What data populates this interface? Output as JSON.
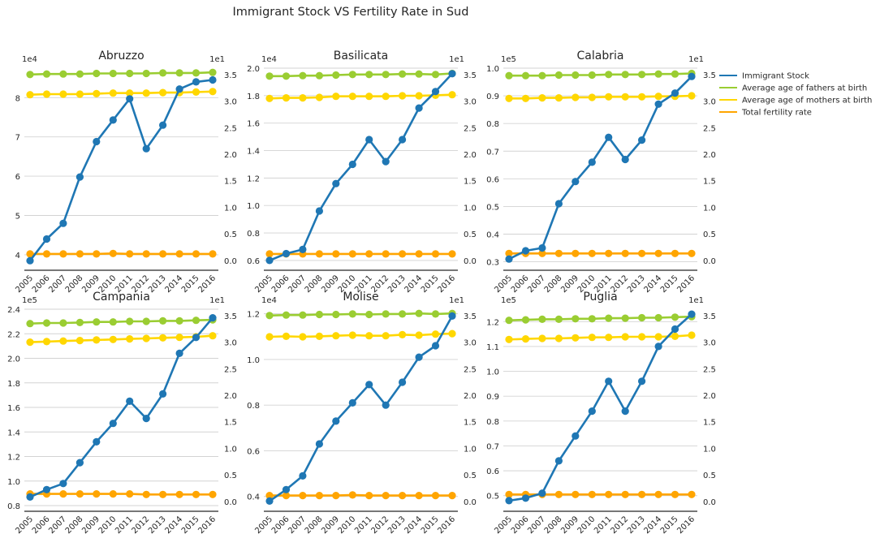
{
  "title": "Immigrant Stock VS Fertility Rate in Sud",
  "colors": {
    "immigrant_stock": "#1f77b4",
    "father_age": "#9acd32",
    "mother_age": "#ffd700",
    "fertility": "#ffa500",
    "grid": "#d3d3d3",
    "axis": "#262626"
  },
  "legend": {
    "placement": "right, outside",
    "entries": [
      {
        "label": "Immigrant Stock",
        "color_key": "immigrant_stock"
      },
      {
        "label": "Average age of fathers at birth",
        "color_key": "father_age"
      },
      {
        "label": "Average age of mothers at birth",
        "color_key": "mother_age"
      },
      {
        "label": "Total fertility rate",
        "color_key": "fertility"
      }
    ]
  },
  "chart_data": [
    {
      "type": "line",
      "title": "Abruzzo",
      "x": [
        "2005",
        "2006",
        "2007",
        "2008",
        "2009",
        "2010",
        "2011",
        "2012",
        "2013",
        "2014",
        "2015",
        "2016"
      ],
      "left_axis": {
        "multiplier_label": "1e4",
        "ticks": [
          "4",
          "5",
          "6",
          "7",
          "8"
        ],
        "tick_values": [
          4,
          5,
          6,
          7,
          8
        ],
        "ylim": [
          3.75,
          8.75
        ]
      },
      "right_axis": {
        "multiplier_label": "1e1",
        "ticks": [
          "0.0",
          "0.5",
          "1.0",
          "1.5",
          "2.0",
          "2.5",
          "3.0",
          "3.5"
        ],
        "tick_values": [
          0,
          0.5,
          1,
          1.5,
          2,
          2.5,
          3,
          3.5
        ],
        "ylim": [
          -0.08,
          3.62
        ]
      },
      "grid": true,
      "series": [
        {
          "name": "Immigrant Stock",
          "axis": "left",
          "color_key": "immigrant_stock",
          "values": [
            3.85,
            4.4,
            4.8,
            5.98,
            6.88,
            7.43,
            7.97,
            6.7,
            7.3,
            8.22,
            8.4,
            8.45
          ]
        },
        {
          "name": "Average age of fathers at birth",
          "axis": "right",
          "color_key": "father_age",
          "values": [
            3.5,
            3.51,
            3.51,
            3.51,
            3.52,
            3.52,
            3.52,
            3.52,
            3.53,
            3.53,
            3.53,
            3.54
          ]
        },
        {
          "name": "Average age of mothers at birth",
          "axis": "right",
          "color_key": "mother_age",
          "values": [
            3.12,
            3.13,
            3.13,
            3.13,
            3.14,
            3.15,
            3.15,
            3.15,
            3.16,
            3.16,
            3.17,
            3.18
          ]
        },
        {
          "name": "Total fertility rate",
          "axis": "right",
          "color_key": "fertility",
          "values": [
            0.12,
            0.12,
            0.12,
            0.12,
            0.12,
            0.13,
            0.12,
            0.12,
            0.12,
            0.12,
            0.12,
            0.12
          ]
        }
      ]
    },
    {
      "type": "line",
      "title": "Basilicata",
      "x": [
        "2005",
        "2006",
        "2007",
        "2008",
        "2009",
        "2010",
        "2011",
        "2012",
        "2013",
        "2014",
        "2015",
        "2016"
      ],
      "left_axis": {
        "multiplier_label": "1e4",
        "ticks": [
          "0.6",
          "0.8",
          "1.0",
          "1.2",
          "1.4",
          "1.6",
          "1.8",
          "2.0"
        ],
        "tick_values": [
          0.6,
          0.8,
          1.0,
          1.2,
          1.4,
          1.6,
          1.8,
          2.0
        ],
        "ylim": [
          0.57,
          2.0
        ]
      },
      "right_axis": {
        "multiplier_label": "1e1",
        "ticks": [
          "0.0",
          "0.5",
          "1.0",
          "1.5",
          "2.0",
          "2.5",
          "3.0",
          "3.5"
        ],
        "tick_values": [
          0,
          0.5,
          1,
          1.5,
          2,
          2.5,
          3,
          3.5
        ],
        "ylim": [
          -0.08,
          3.62
        ]
      },
      "grid": true,
      "series": [
        {
          "name": "Immigrant Stock",
          "axis": "left",
          "color_key": "immigrant_stock",
          "values": [
            0.6,
            0.65,
            0.68,
            0.96,
            1.16,
            1.3,
            1.48,
            1.32,
            1.48,
            1.71,
            1.83,
            1.96
          ]
        },
        {
          "name": "Average age of fathers at birth",
          "axis": "right",
          "color_key": "father_age",
          "values": [
            3.47,
            3.47,
            3.48,
            3.48,
            3.49,
            3.5,
            3.5,
            3.5,
            3.51,
            3.51,
            3.5,
            3.52
          ]
        },
        {
          "name": "Average age of mothers at birth",
          "axis": "right",
          "color_key": "mother_age",
          "values": [
            3.05,
            3.06,
            3.06,
            3.07,
            3.09,
            3.09,
            3.09,
            3.09,
            3.1,
            3.1,
            3.11,
            3.12
          ]
        },
        {
          "name": "Total fertility rate",
          "axis": "right",
          "color_key": "fertility",
          "values": [
            0.12,
            0.12,
            0.12,
            0.12,
            0.12,
            0.12,
            0.12,
            0.12,
            0.12,
            0.12,
            0.12,
            0.12
          ]
        }
      ]
    },
    {
      "type": "line",
      "title": "Calabria",
      "x": [
        "2005",
        "2006",
        "2007",
        "2008",
        "2009",
        "2010",
        "2011",
        "2012",
        "2013",
        "2014",
        "2015",
        "2016"
      ],
      "left_axis": {
        "multiplier_label": "1e5",
        "ticks": [
          "0.3",
          "0.4",
          "0.5",
          "0.6",
          "0.7",
          "0.8",
          "0.9",
          "1.0"
        ],
        "tick_values": [
          0.3,
          0.4,
          0.5,
          0.6,
          0.7,
          0.8,
          0.9,
          1.0
        ],
        "ylim": [
          0.29,
          1.0
        ]
      },
      "right_axis": {
        "multiplier_label": "1e1",
        "ticks": [
          "0.0",
          "0.5",
          "1.0",
          "1.5",
          "2.0",
          "2.5",
          "3.0",
          "3.5"
        ],
        "tick_values": [
          0,
          0.5,
          1,
          1.5,
          2,
          2.5,
          3,
          3.5
        ],
        "ylim": [
          -0.08,
          3.62
        ]
      },
      "grid": true,
      "series": [
        {
          "name": "Immigrant Stock",
          "axis": "left",
          "color_key": "immigrant_stock",
          "values": [
            0.31,
            0.34,
            0.35,
            0.51,
            0.59,
            0.66,
            0.75,
            0.67,
            0.74,
            0.87,
            0.91,
            0.97
          ]
        },
        {
          "name": "Average age of fathers at birth",
          "axis": "right",
          "color_key": "father_age",
          "values": [
            3.48,
            3.48,
            3.48,
            3.49,
            3.49,
            3.49,
            3.5,
            3.5,
            3.5,
            3.51,
            3.51,
            3.52
          ]
        },
        {
          "name": "Average age of mothers at birth",
          "axis": "right",
          "color_key": "mother_age",
          "values": [
            3.05,
            3.05,
            3.06,
            3.06,
            3.07,
            3.07,
            3.08,
            3.08,
            3.08,
            3.09,
            3.09,
            3.1
          ]
        },
        {
          "name": "Total fertility rate",
          "axis": "right",
          "color_key": "fertility",
          "values": [
            0.13,
            0.13,
            0.13,
            0.13,
            0.13,
            0.13,
            0.13,
            0.13,
            0.13,
            0.13,
            0.13,
            0.13
          ]
        }
      ]
    },
    {
      "type": "line",
      "title": "Campania",
      "x": [
        "2005",
        "2006",
        "2007",
        "2008",
        "2009",
        "2010",
        "2011",
        "2012",
        "2013",
        "2014",
        "2015",
        "2016"
      ],
      "left_axis": {
        "multiplier_label": "1e5",
        "ticks": [
          "0.8",
          "1.0",
          "1.2",
          "1.4",
          "1.6",
          "1.8",
          "2.0",
          "2.2",
          "2.4"
        ],
        "tick_values": [
          0.8,
          1.0,
          1.2,
          1.4,
          1.6,
          1.8,
          2.0,
          2.2,
          2.4
        ],
        "ylim": [
          0.8,
          2.4
        ]
      },
      "right_axis": {
        "multiplier_label": "1e1",
        "ticks": [
          "0.0",
          "0.5",
          "1.0",
          "1.5",
          "2.0",
          "2.5",
          "3.0",
          "3.5"
        ],
        "tick_values": [
          0,
          0.5,
          1,
          1.5,
          2,
          2.5,
          3,
          3.5
        ],
        "ylim": [
          -0.08,
          3.62
        ]
      },
      "grid": true,
      "series": [
        {
          "name": "Immigrant Stock",
          "axis": "left",
          "color_key": "immigrant_stock",
          "values": [
            0.87,
            0.93,
            0.98,
            1.15,
            1.32,
            1.47,
            1.65,
            1.51,
            1.71,
            2.04,
            2.17,
            2.33
          ]
        },
        {
          "name": "Average age of fathers at birth",
          "axis": "right",
          "color_key": "father_age",
          "values": [
            3.35,
            3.36,
            3.36,
            3.37,
            3.38,
            3.38,
            3.39,
            3.39,
            3.4,
            3.4,
            3.41,
            3.42
          ]
        },
        {
          "name": "Average age of mothers at birth",
          "axis": "right",
          "color_key": "mother_age",
          "values": [
            3.0,
            3.01,
            3.02,
            3.03,
            3.04,
            3.05,
            3.06,
            3.07,
            3.08,
            3.09,
            3.1,
            3.12
          ]
        },
        {
          "name": "Total fertility rate",
          "axis": "right",
          "color_key": "fertility",
          "values": [
            0.14,
            0.14,
            0.14,
            0.14,
            0.14,
            0.14,
            0.14,
            0.13,
            0.13,
            0.13,
            0.13,
            0.13
          ]
        }
      ]
    },
    {
      "type": "line",
      "title": "Molise",
      "x": [
        "2005",
        "2006",
        "2007",
        "2008",
        "2009",
        "2010",
        "2011",
        "2012",
        "2013",
        "2014",
        "2015",
        "2016"
      ],
      "left_axis": {
        "multiplier_label": "1e4",
        "ticks": [
          "0.4",
          "0.6",
          "0.8",
          "1.0",
          "1.2"
        ],
        "tick_values": [
          0.4,
          0.6,
          0.8,
          1.0,
          1.2
        ],
        "ylim": [
          0.36,
          1.22
        ]
      },
      "right_axis": {
        "multiplier_label": "1e1",
        "ticks": [
          "0.0",
          "0.5",
          "1.0",
          "1.5",
          "2.0",
          "2.5",
          "3.0",
          "3.5"
        ],
        "tick_values": [
          0,
          0.5,
          1,
          1.5,
          2,
          2.5,
          3,
          3.5
        ],
        "ylim": [
          -0.08,
          3.62
        ]
      },
      "grid": true,
      "series": [
        {
          "name": "Immigrant Stock",
          "axis": "left",
          "color_key": "immigrant_stock",
          "values": [
            0.38,
            0.43,
            0.49,
            0.63,
            0.73,
            0.81,
            0.89,
            0.8,
            0.9,
            1.01,
            1.06,
            1.19
          ]
        },
        {
          "name": "Average age of fathers at birth",
          "axis": "right",
          "color_key": "father_age",
          "values": [
            3.5,
            3.51,
            3.51,
            3.52,
            3.52,
            3.53,
            3.52,
            3.53,
            3.53,
            3.54,
            3.53,
            3.54
          ]
        },
        {
          "name": "Average age of mothers at birth",
          "axis": "right",
          "color_key": "mother_age",
          "values": [
            3.1,
            3.11,
            3.1,
            3.11,
            3.12,
            3.13,
            3.12,
            3.12,
            3.14,
            3.13,
            3.15,
            3.16
          ]
        },
        {
          "name": "Total fertility rate",
          "axis": "right",
          "color_key": "fertility",
          "values": [
            0.11,
            0.11,
            0.11,
            0.11,
            0.11,
            0.12,
            0.11,
            0.11,
            0.11,
            0.11,
            0.11,
            0.11
          ]
        }
      ]
    },
    {
      "type": "line",
      "title": "Puglia",
      "x": [
        "2005",
        "2006",
        "2007",
        "2008",
        "2009",
        "2010",
        "2011",
        "2012",
        "2013",
        "2014",
        "2015",
        "2016"
      ],
      "left_axis": {
        "multiplier_label": "1e5",
        "ticks": [
          "0.5",
          "0.6",
          "0.7",
          "0.8",
          "0.9",
          "1.0",
          "1.1",
          "1.2"
        ],
        "tick_values": [
          0.5,
          0.6,
          0.7,
          0.8,
          0.9,
          1.0,
          1.1,
          1.2
        ],
        "ylim": [
          0.46,
          1.25
        ]
      },
      "right_axis": {
        "multiplier_label": "1e1",
        "ticks": [
          "0.0",
          "0.5",
          "1.0",
          "1.5",
          "2.0",
          "2.5",
          "3.0",
          "3.5"
        ],
        "tick_values": [
          0,
          0.5,
          1,
          1.5,
          2,
          2.5,
          3,
          3.5
        ],
        "ylim": [
          -0.08,
          3.62
        ]
      },
      "grid": true,
      "series": [
        {
          "name": "Immigrant Stock",
          "axis": "left",
          "color_key": "immigrant_stock",
          "values": [
            0.48,
            0.49,
            0.51,
            0.64,
            0.74,
            0.84,
            0.96,
            0.84,
            0.96,
            1.1,
            1.17,
            1.23
          ]
        },
        {
          "name": "Average age of fathers at birth",
          "axis": "right",
          "color_key": "father_age",
          "values": [
            3.41,
            3.42,
            3.43,
            3.43,
            3.44,
            3.44,
            3.45,
            3.45,
            3.46,
            3.46,
            3.47,
            3.48
          ]
        },
        {
          "name": "Average age of mothers at birth",
          "axis": "right",
          "color_key": "mother_age",
          "values": [
            3.05,
            3.06,
            3.07,
            3.07,
            3.08,
            3.09,
            3.09,
            3.1,
            3.1,
            3.1,
            3.11,
            3.13
          ]
        },
        {
          "name": "Total fertility rate",
          "axis": "right",
          "color_key": "fertility",
          "values": [
            0.13,
            0.13,
            0.13,
            0.13,
            0.13,
            0.13,
            0.13,
            0.13,
            0.13,
            0.13,
            0.13,
            0.13
          ]
        }
      ]
    }
  ]
}
